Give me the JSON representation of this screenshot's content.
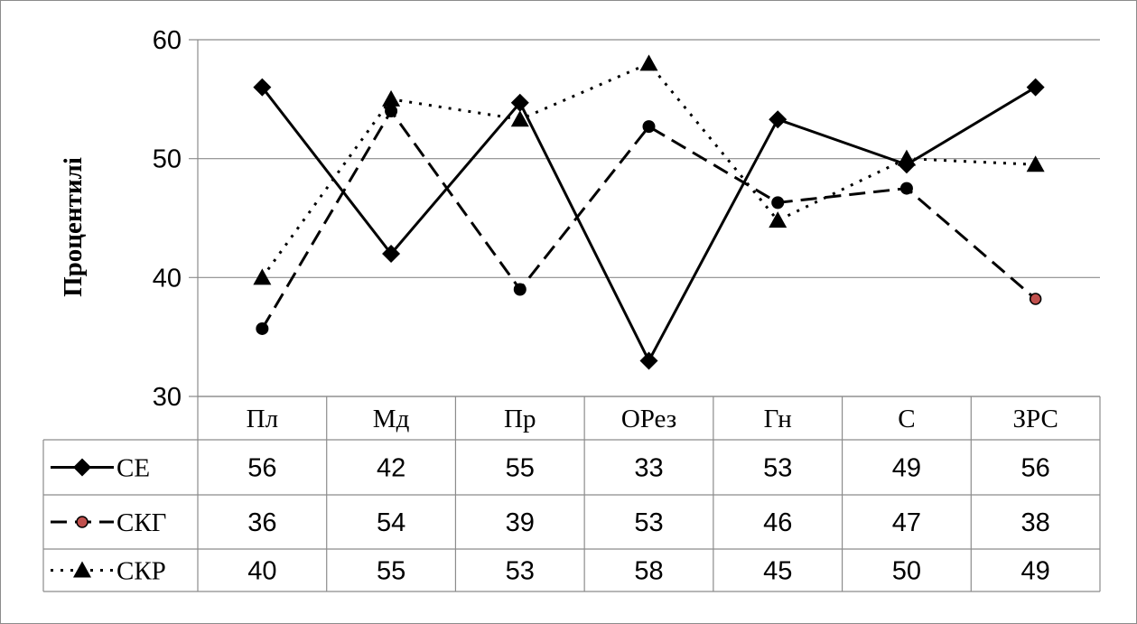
{
  "chart_data": {
    "type": "line",
    "ylabel": "Процентилі",
    "ylim": [
      30,
      60
    ],
    "yticks": [
      30,
      40,
      50,
      60
    ],
    "grid": true,
    "legend": "table",
    "categories": [
      "Пл",
      "Мд",
      "Пр",
      "ОРез",
      "Гн",
      "С",
      "ЗРС"
    ],
    "series": [
      {
        "name": "СЕ",
        "values": [
          56,
          42,
          55,
          33,
          53,
          49,
          56
        ],
        "plot_values": [
          56,
          42,
          54.7,
          33,
          53.3,
          49.5,
          56
        ],
        "line": "solid",
        "marker": "diamond",
        "color": "#000000"
      },
      {
        "name": "СКГ",
        "values": [
          36,
          54,
          39,
          53,
          46,
          47,
          38
        ],
        "plot_values": [
          35.7,
          54,
          39,
          52.7,
          46.3,
          47.5,
          38.2
        ],
        "line": "dashed",
        "marker": "circle",
        "color": "#000000",
        "last_marker_color": "#c0504d"
      },
      {
        "name": "СКР",
        "values": [
          40,
          55,
          53,
          58,
          45,
          50,
          49
        ],
        "plot_values": [
          40,
          55,
          53.3,
          58,
          44.8,
          50,
          49.5
        ],
        "line": "dotted",
        "marker": "triangle",
        "color": "#000000"
      }
    ]
  }
}
